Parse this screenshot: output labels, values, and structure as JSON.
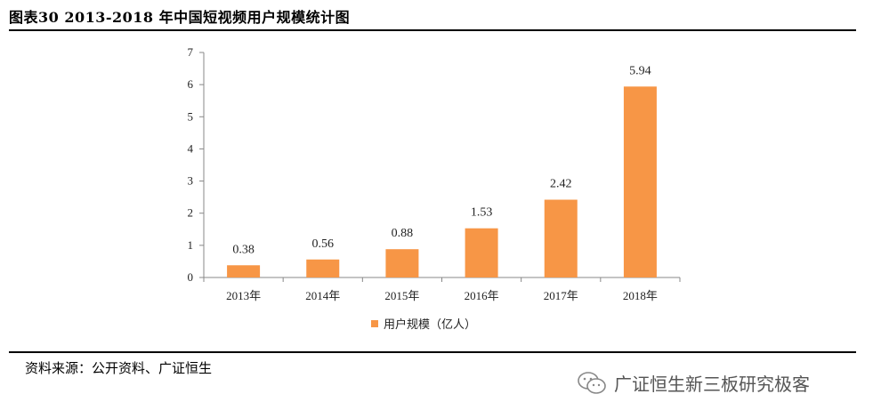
{
  "header": {
    "title": "图表30 2013-2018 年中国短视频用户规模统计图"
  },
  "footer": {
    "source": "资料来源：公开资料、广证恒生"
  },
  "watermark": {
    "text": "广证恒生新三板研究极客",
    "icon": "wechat-logo-icon"
  },
  "chart_data": {
    "type": "bar",
    "categories": [
      "2013年",
      "2014年",
      "2015年",
      "2016年",
      "2017年",
      "2018年"
    ],
    "series": [
      {
        "name": "用户规模（亿人）",
        "values": [
          0.38,
          0.56,
          0.88,
          1.53,
          2.42,
          5.94
        ],
        "color": "#F79646"
      }
    ],
    "ylim": [
      0,
      7
    ],
    "yticks": [
      0,
      1,
      2,
      3,
      4,
      5,
      6,
      7
    ],
    "grid": false,
    "legend_position": "bottom",
    "data_labels": [
      "0.38",
      "0.56",
      "0.88",
      "1.53",
      "2.42",
      "5.94"
    ]
  }
}
